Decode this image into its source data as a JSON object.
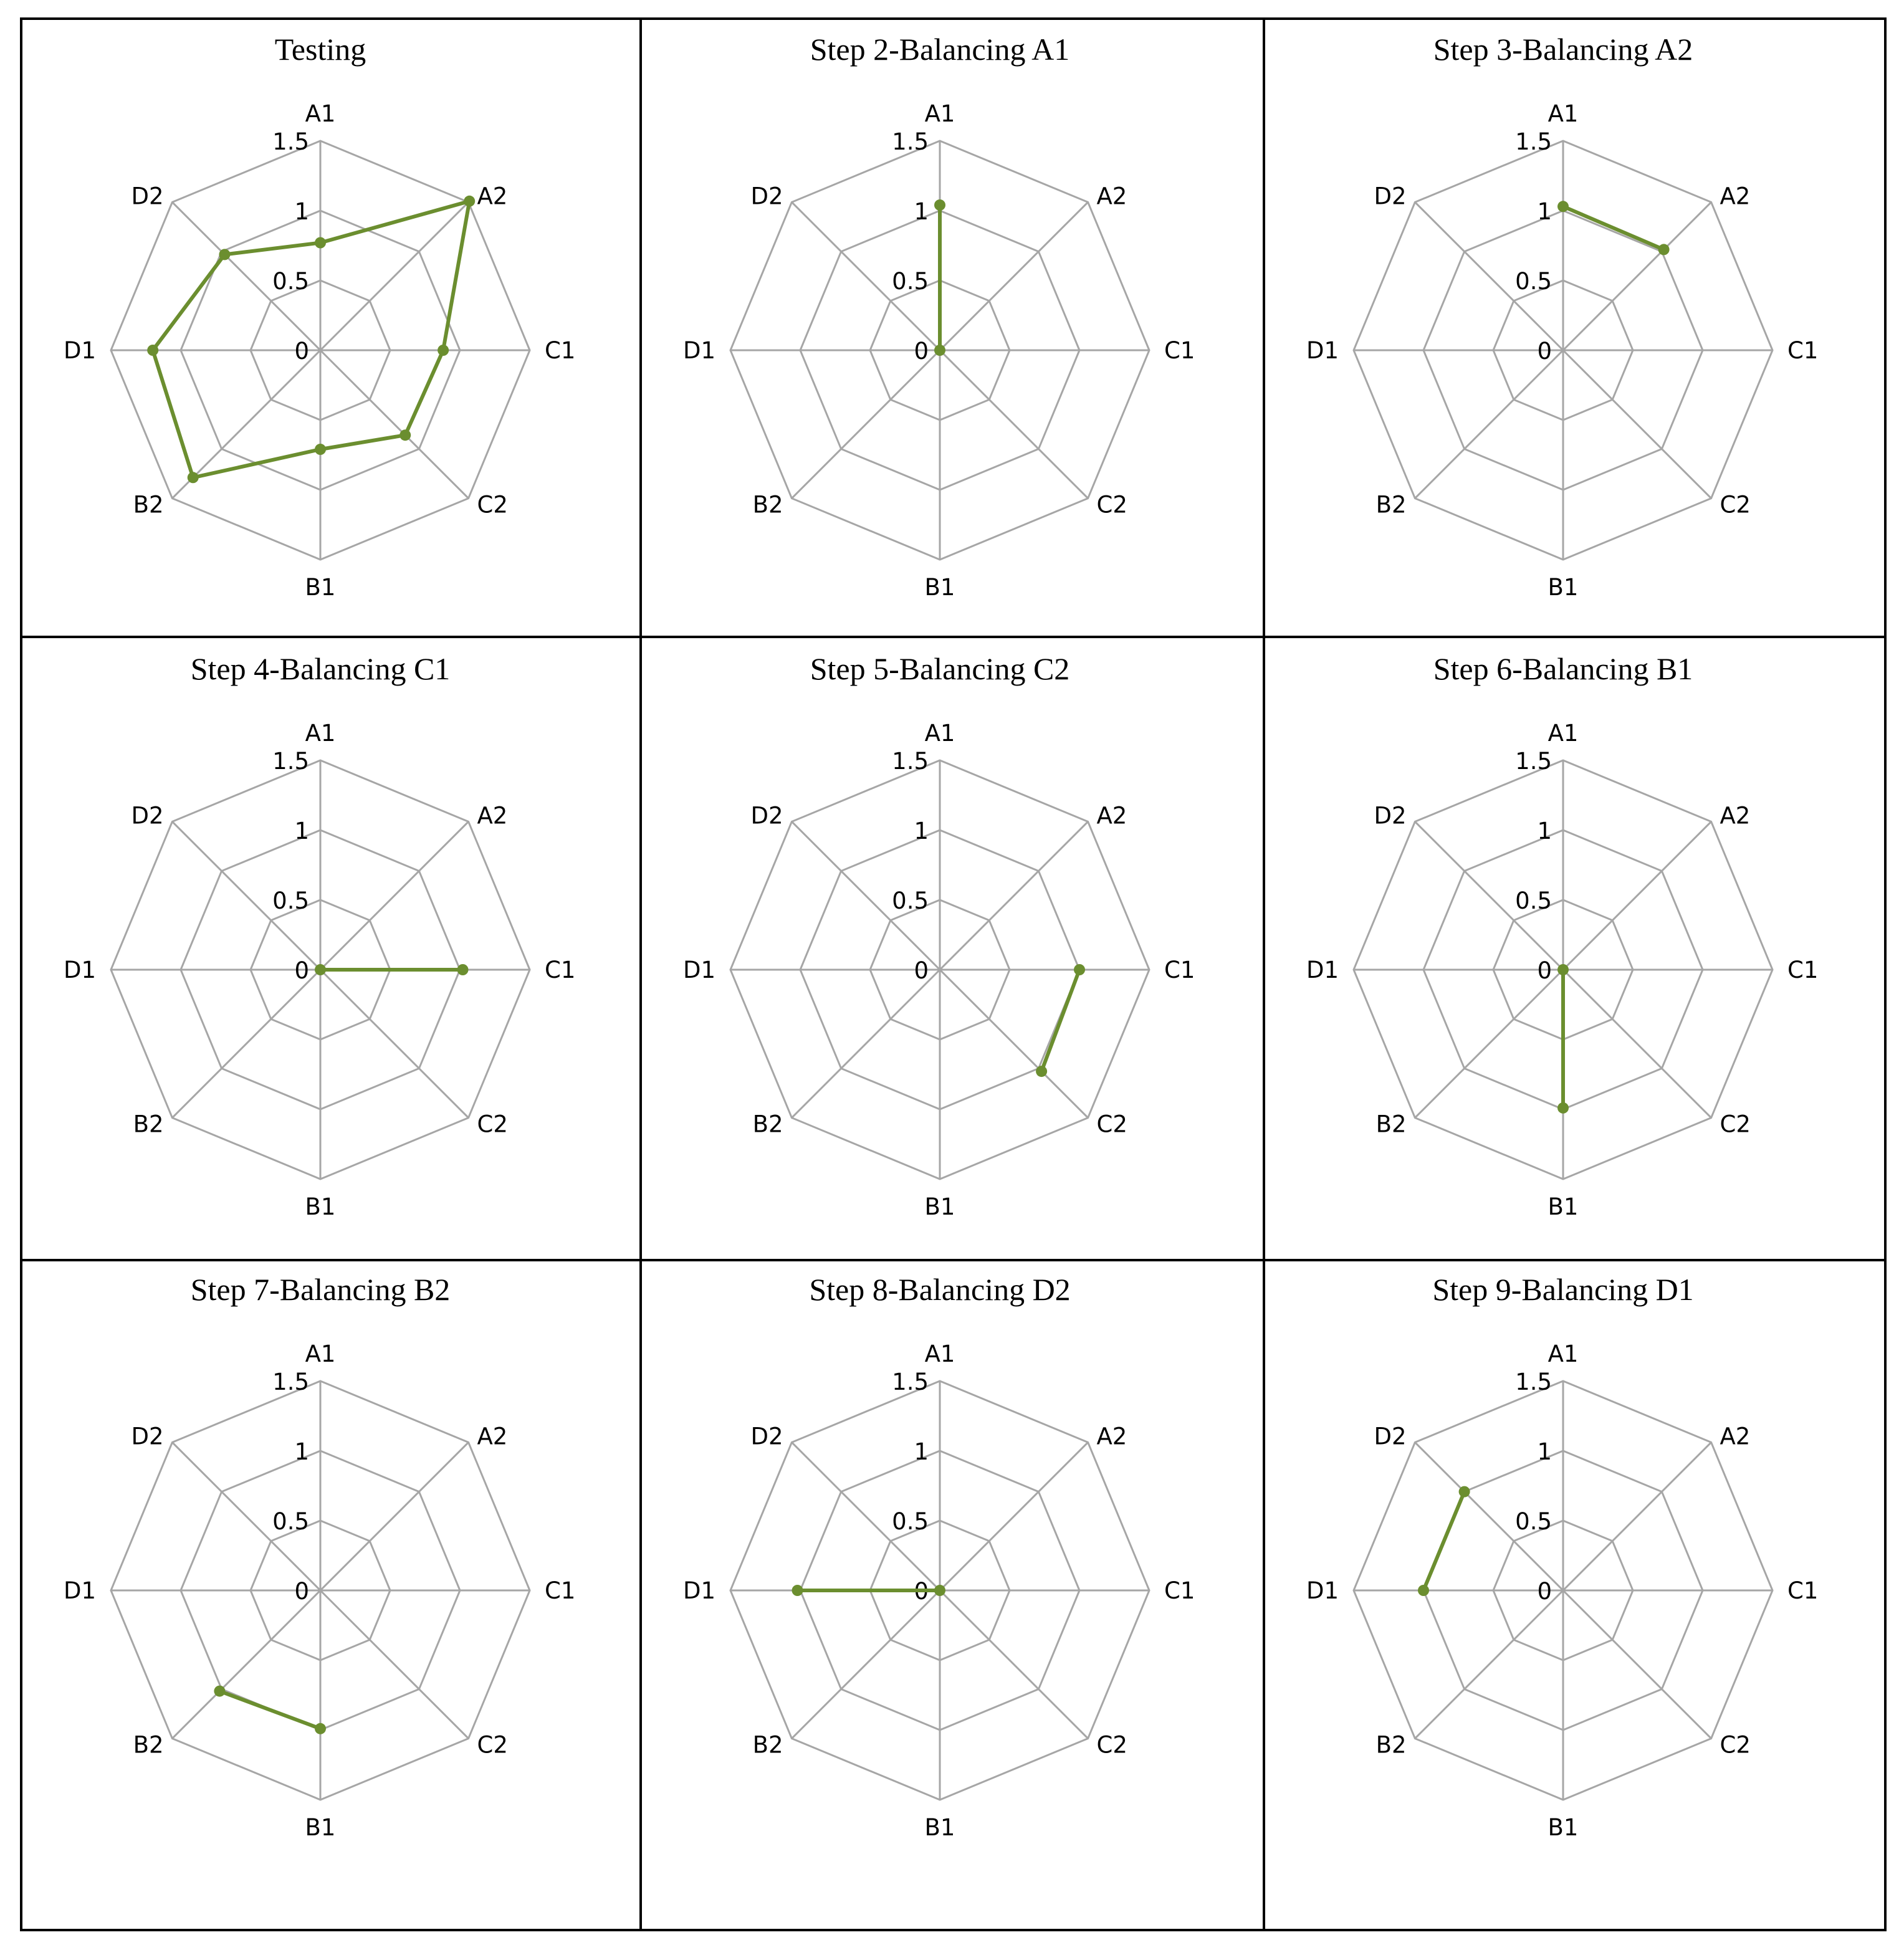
{
  "figure": {
    "colors": {
      "series": "#6b8e2f",
      "grid": "#a6a6a6",
      "border": "#000000"
    }
  },
  "chart_data": [
    {
      "type": "radar",
      "title": "Testing",
      "axes": [
        "A1",
        "A2",
        "C1",
        "C2",
        "B1",
        "B2",
        "D1",
        "D2"
      ],
      "rlim": [
        0,
        1.5
      ],
      "ticks": [
        "0",
        "0.5",
        "1",
        "1.5"
      ],
      "tick_values": [
        0,
        0.5,
        1,
        1.5
      ],
      "grid": true,
      "points": [
        {
          "axis": "A1",
          "value": 0.77
        },
        {
          "axis": "A2",
          "value": 1.51
        },
        {
          "axis": "C1",
          "value": 0.88
        },
        {
          "axis": "C2",
          "value": 0.86
        },
        {
          "axis": "B1",
          "value": 0.71
        },
        {
          "axis": "B2",
          "value": 1.29
        },
        {
          "axis": "D1",
          "value": 1.2
        },
        {
          "axis": "D2",
          "value": 0.97
        }
      ],
      "closed": true
    },
    {
      "type": "radar",
      "title": "Step 2-Balancing A1",
      "axes": [
        "A1",
        "A2",
        "C1",
        "C2",
        "B1",
        "B2",
        "D1",
        "D2"
      ],
      "rlim": [
        0,
        1.5
      ],
      "ticks": [
        "0",
        "0.5",
        "1",
        "1.5"
      ],
      "tick_values": [
        0,
        0.5,
        1,
        1.5
      ],
      "grid": true,
      "points": [
        {
          "axis": "A1",
          "value": 1.04
        },
        {
          "axis": "A1",
          "value": 0
        }
      ],
      "closed": false
    },
    {
      "type": "radar",
      "title": "Step 3-Balancing A2",
      "axes": [
        "A1",
        "A2",
        "C1",
        "C2",
        "B1",
        "B2",
        "D1",
        "D2"
      ],
      "rlim": [
        0,
        1.5
      ],
      "ticks": [
        "0",
        "0.5",
        "1",
        "1.5"
      ],
      "tick_values": [
        0,
        0.5,
        1,
        1.5
      ],
      "grid": true,
      "points": [
        {
          "axis": "A1",
          "value": 1.03
        },
        {
          "axis": "A2",
          "value": 1.02
        }
      ],
      "closed": false
    },
    {
      "type": "radar",
      "title": "Step 4-Balancing C1",
      "axes": [
        "A1",
        "A2",
        "C1",
        "C2",
        "B1",
        "B2",
        "D1",
        "D2"
      ],
      "rlim": [
        0,
        1.5
      ],
      "ticks": [
        "0",
        "0.5",
        "1",
        "1.5"
      ],
      "tick_values": [
        0,
        0.5,
        1,
        1.5
      ],
      "grid": true,
      "points": [
        {
          "axis": "A1",
          "value": 0
        },
        {
          "axis": "C1",
          "value": 1.02
        }
      ],
      "closed": false
    },
    {
      "type": "radar",
      "title": "Step 5-Balancing C2",
      "axes": [
        "A1",
        "A2",
        "C1",
        "C2",
        "B1",
        "B2",
        "D1",
        "D2"
      ],
      "rlim": [
        0,
        1.5
      ],
      "ticks": [
        "0",
        "0.5",
        "1",
        "1.5"
      ],
      "tick_values": [
        0,
        0.5,
        1,
        1.5
      ],
      "grid": true,
      "points": [
        {
          "axis": "C1",
          "value": 1.0
        },
        {
          "axis": "C2",
          "value": 1.03
        }
      ],
      "closed": false
    },
    {
      "type": "radar",
      "title": "Step 6-Balancing B1",
      "axes": [
        "A1",
        "A2",
        "C1",
        "C2",
        "B1",
        "B2",
        "D1",
        "D2"
      ],
      "rlim": [
        0,
        1.5
      ],
      "ticks": [
        "0",
        "0.5",
        "1",
        "1.5"
      ],
      "tick_values": [
        0,
        0.5,
        1,
        1.5
      ],
      "grid": true,
      "points": [
        {
          "axis": "A1",
          "value": 0
        },
        {
          "axis": "B1",
          "value": 0.99
        }
      ],
      "closed": false
    },
    {
      "type": "radar",
      "title": "Step 7-Balancing B2",
      "axes": [
        "A1",
        "A2",
        "C1",
        "C2",
        "B1",
        "B2",
        "D1",
        "D2"
      ],
      "rlim": [
        0,
        1.5
      ],
      "ticks": [
        "0",
        "0.5",
        "1",
        "1.5"
      ],
      "tick_values": [
        0,
        0.5,
        1,
        1.5
      ],
      "grid": true,
      "points": [
        {
          "axis": "B2",
          "value": 1.02
        },
        {
          "axis": "B1",
          "value": 0.99
        }
      ],
      "closed": false
    },
    {
      "type": "radar",
      "title": "Step 8-Balancing D2",
      "axes": [
        "A1",
        "A2",
        "C1",
        "C2",
        "B1",
        "B2",
        "D1",
        "D2"
      ],
      "rlim": [
        0,
        1.5
      ],
      "ticks": [
        "0",
        "0.5",
        "1",
        "1.5"
      ],
      "tick_values": [
        0,
        0.5,
        1,
        1.5
      ],
      "grid": true,
      "points": [
        {
          "axis": "D1",
          "value": 1.02
        },
        {
          "axis": "A1",
          "value": 0
        }
      ],
      "closed": false
    },
    {
      "type": "radar",
      "title": "Step 9-Balancing D1",
      "axes": [
        "A1",
        "A2",
        "C1",
        "C2",
        "B1",
        "B2",
        "D1",
        "D2"
      ],
      "rlim": [
        0,
        1.5
      ],
      "ticks": [
        "0",
        "0.5",
        "1",
        "1.5"
      ],
      "tick_values": [
        0,
        0.5,
        1,
        1.5
      ],
      "grid": true,
      "points": [
        {
          "axis": "D2",
          "value": 1.0
        },
        {
          "axis": "D1",
          "value": 1.0
        }
      ],
      "closed": false
    }
  ]
}
